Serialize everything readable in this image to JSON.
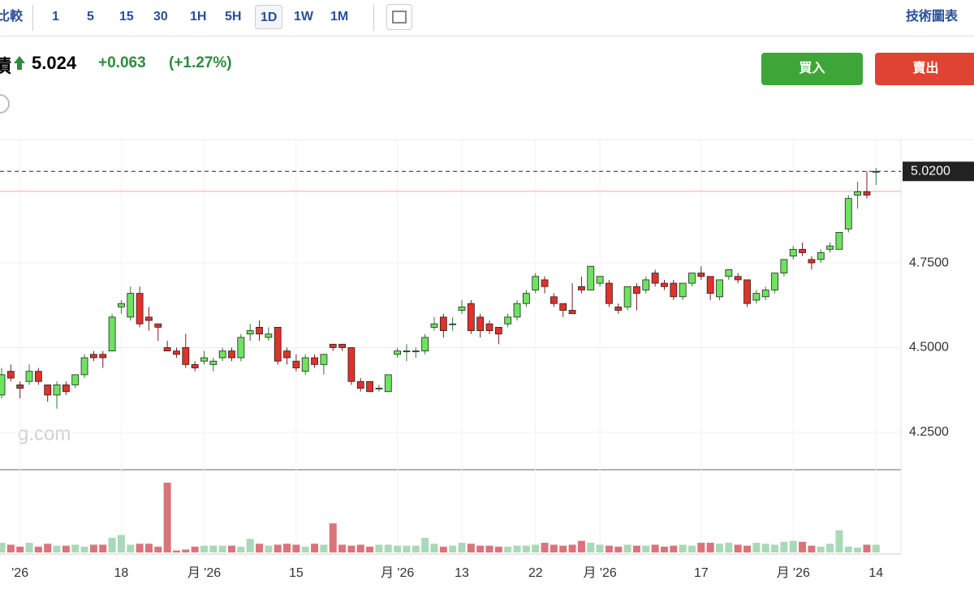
{
  "toolbar": {
    "compare": "比較",
    "intervals": [
      "1",
      "5",
      "15",
      "30",
      "1H",
      "5H",
      "1D",
      "1W",
      "1M"
    ],
    "active_interval": "1D",
    "chart_types": "技術圖表"
  },
  "quote": {
    "name": "債",
    "price": "5.024",
    "change": "+0.063",
    "change_pct": "(+1.27%)"
  },
  "actions": {
    "buy": "買入",
    "sell": "賣出"
  },
  "watermark": "g.com",
  "chart_data": {
    "type": "candlestick",
    "categories": [
      null,
      null,
      "'26",
      null,
      null,
      null,
      null,
      null,
      null,
      null,
      null,
      null,
      null,
      "18",
      null,
      null,
      null,
      null,
      null,
      null,
      null,
      null,
      "月 '26",
      null,
      null,
      null,
      null,
      null,
      null,
      null,
      null,
      null,
      "15",
      null,
      null,
      null,
      null,
      null,
      null,
      null,
      null,
      null,
      null,
      "月 '26",
      null,
      null,
      null,
      null,
      null,
      null,
      "13",
      null,
      null,
      null,
      null,
      null,
      null,
      null,
      "22",
      null,
      null,
      null,
      null,
      null,
      null,
      "月 '26",
      null,
      null,
      null,
      null,
      null,
      null,
      null,
      null,
      null,
      null,
      "17",
      null,
      null,
      null,
      null,
      null,
      null,
      null,
      null,
      null,
      "月 '26",
      null,
      null,
      null,
      null,
      null,
      null,
      null,
      null,
      "14"
    ],
    "open": [
      4.36,
      4.43,
      4.39,
      4.4,
      4.43,
      4.39,
      4.36,
      4.39,
      4.39,
      4.42,
      4.48,
      4.48,
      4.49,
      4.62,
      4.59,
      4.66,
      4.59,
      4.57,
      4.5,
      4.49,
      4.5,
      4.45,
      4.46,
      4.45,
      4.47,
      4.49,
      4.47,
      4.54,
      4.56,
      4.53,
      4.56,
      4.49,
      4.46,
      4.43,
      4.47,
      4.45,
      4.51,
      4.51,
      4.5,
      4.4,
      4.4,
      4.38,
      4.37,
      4.48,
      4.49,
      4.49,
      4.49,
      4.56,
      4.59,
      4.57,
      4.61,
      4.63,
      4.59,
      4.57,
      4.56,
      4.57,
      4.59,
      4.63,
      4.67,
      4.7,
      4.65,
      4.63,
      4.61,
      4.68,
      4.67,
      4.69,
      4.69,
      4.62,
      4.62,
      4.68,
      4.67,
      4.72,
      4.69,
      4.69,
      4.65,
      4.69,
      4.72,
      4.71,
      4.65,
      4.71,
      4.71,
      4.7,
      4.64,
      4.65,
      4.67,
      4.72,
      4.77,
      4.79,
      4.76,
      4.76,
      4.79,
      4.79,
      4.85,
      4.95,
      4.96,
      5.02
    ],
    "high": [
      4.44,
      4.45,
      4.4,
      4.45,
      4.44,
      4.39,
      4.4,
      4.4,
      4.42,
      4.48,
      4.49,
      4.49,
      4.6,
      4.64,
      4.68,
      4.68,
      4.62,
      4.57,
      4.52,
      4.5,
      4.54,
      4.46,
      4.49,
      4.47,
      4.5,
      4.5,
      4.54,
      4.57,
      4.58,
      4.56,
      4.56,
      4.5,
      4.48,
      4.48,
      4.48,
      4.48,
      4.51,
      4.51,
      4.5,
      4.41,
      4.4,
      4.39,
      4.42,
      4.5,
      4.51,
      4.5,
      4.54,
      4.59,
      4.6,
      4.59,
      4.64,
      4.64,
      4.6,
      4.58,
      4.56,
      4.6,
      4.64,
      4.67,
      4.72,
      4.71,
      4.66,
      4.63,
      4.69,
      4.71,
      4.74,
      4.71,
      4.7,
      4.63,
      4.68,
      4.69,
      4.71,
      4.73,
      4.7,
      4.7,
      4.69,
      4.72,
      4.74,
      4.71,
      4.7,
      4.73,
      4.72,
      4.7,
      4.67,
      4.68,
      4.72,
      4.76,
      4.8,
      4.81,
      4.77,
      4.79,
      4.81,
      4.84,
      4.95,
      4.99,
      5.02,
      5.03
    ],
    "low": [
      4.35,
      4.4,
      4.35,
      4.39,
      4.39,
      4.34,
      4.32,
      4.36,
      4.38,
      4.41,
      4.46,
      4.44,
      4.49,
      4.6,
      4.58,
      4.56,
      4.55,
      4.52,
      4.49,
      4.47,
      4.44,
      4.43,
      4.45,
      4.43,
      4.46,
      4.46,
      4.46,
      4.52,
      4.52,
      4.52,
      4.45,
      4.45,
      4.43,
      4.42,
      4.44,
      4.42,
      4.49,
      4.49,
      4.39,
      4.37,
      4.37,
      4.37,
      4.37,
      4.47,
      4.46,
      4.47,
      4.48,
      4.55,
      4.53,
      4.55,
      4.6,
      4.54,
      4.53,
      4.54,
      4.51,
      4.56,
      4.58,
      4.62,
      4.66,
      4.66,
      4.62,
      4.59,
      4.6,
      4.66,
      4.67,
      4.68,
      4.62,
      4.6,
      4.61,
      4.61,
      4.66,
      4.68,
      4.67,
      4.64,
      4.64,
      4.68,
      4.7,
      4.64,
      4.64,
      4.7,
      4.69,
      4.62,
      4.63,
      4.64,
      4.66,
      4.71,
      4.76,
      4.77,
      4.73,
      4.75,
      4.78,
      4.79,
      4.84,
      4.91,
      4.94,
      4.98
    ],
    "close": [
      4.42,
      4.41,
      4.38,
      4.43,
      4.4,
      4.36,
      4.39,
      4.37,
      4.42,
      4.47,
      4.47,
      4.47,
      4.59,
      4.63,
      4.66,
      4.57,
      4.58,
      4.56,
      4.49,
      4.48,
      4.45,
      4.44,
      4.47,
      4.46,
      4.49,
      4.47,
      4.53,
      4.55,
      4.54,
      4.54,
      4.46,
      4.47,
      4.44,
      4.47,
      4.45,
      4.48,
      4.5,
      4.5,
      4.4,
      4.38,
      4.37,
      4.38,
      4.42,
      4.49,
      4.49,
      4.49,
      4.53,
      4.57,
      4.55,
      4.57,
      4.62,
      4.55,
      4.55,
      4.55,
      4.54,
      4.59,
      4.63,
      4.66,
      4.71,
      4.68,
      4.63,
      4.61,
      4.6,
      4.67,
      4.74,
      4.71,
      4.63,
      4.61,
      4.68,
      4.66,
      4.7,
      4.69,
      4.68,
      4.65,
      4.69,
      4.72,
      4.71,
      4.66,
      4.7,
      4.73,
      4.7,
      4.63,
      4.66,
      4.67,
      4.72,
      4.76,
      4.79,
      4.78,
      4.75,
      4.78,
      4.8,
      4.84,
      4.94,
      4.96,
      4.95,
      5.02
    ],
    "volume": [
      10,
      8,
      6,
      10,
      6,
      9,
      7,
      7,
      8,
      6,
      8,
      8,
      15,
      18,
      8,
      9,
      9,
      6,
      72,
      2,
      3,
      6,
      7,
      7,
      7,
      7,
      6,
      14,
      9,
      7,
      8,
      9,
      8,
      6,
      9,
      8,
      30,
      8,
      7,
      8,
      6,
      8,
      8,
      7,
      7,
      7,
      15,
      9,
      6,
      7,
      10,
      9,
      7,
      7,
      6,
      6,
      7,
      7,
      8,
      10,
      8,
      7,
      8,
      12,
      10,
      8,
      7,
      6,
      8,
      7,
      7,
      8,
      6,
      7,
      8,
      7,
      10,
      10,
      9,
      10,
      8,
      7,
      10,
      9,
      8,
      11,
      12,
      11,
      7,
      6,
      9,
      23,
      6,
      5,
      8,
      8
    ],
    "up_color": "#6ee35f",
    "down_color": "#e2302c",
    "volume_up_color": "#a9d9b6",
    "volume_down_color": "#d9747a",
    "ylim": [
      4.142,
      5.114
    ],
    "yticks": [
      {
        "value": 4.25,
        "label": "4.2500"
      },
      {
        "value": 4.5,
        "label": "4.5000"
      },
      {
        "value": 4.75,
        "label": "4.7500"
      }
    ],
    "last_price": {
      "value": 5.02,
      "label": "5.0200"
    },
    "prev_close": 4.961,
    "grid": true
  }
}
